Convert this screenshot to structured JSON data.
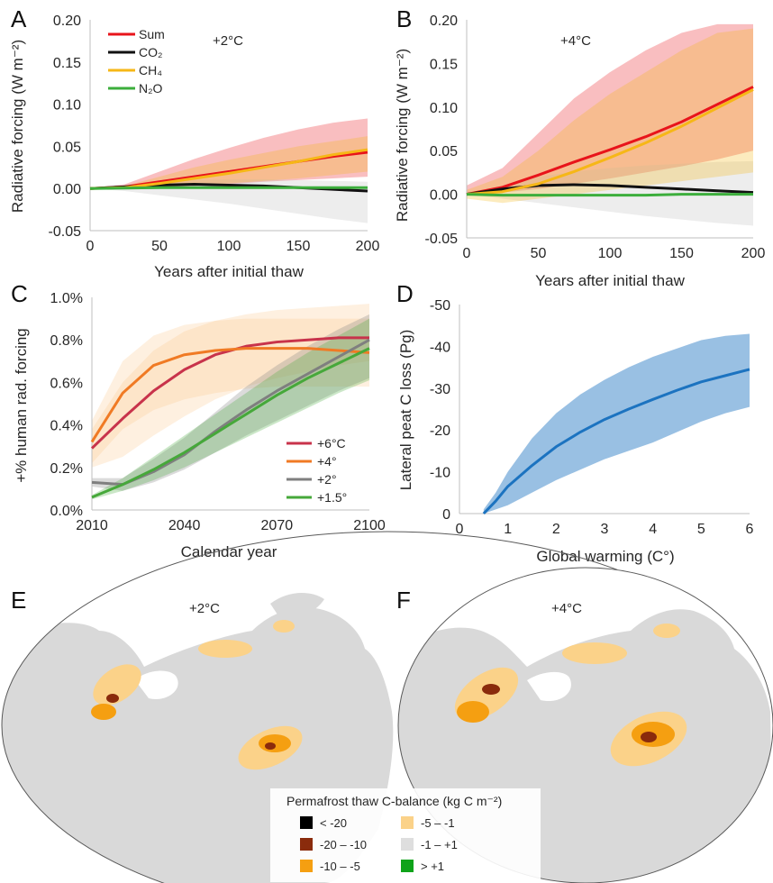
{
  "chart_data": [
    {
      "panel": "A",
      "type": "line",
      "annotation": "+2°C",
      "xlabel": "Years after initial thaw",
      "ylabel": "Radiative forcing (W m⁻²)",
      "xlim": [
        0,
        200
      ],
      "ylim": [
        -0.05,
        0.2
      ],
      "xticks": [
        "0",
        "50",
        "100",
        "150",
        "200"
      ],
      "yticks": [
        "-0.05",
        "0.00",
        "0.05",
        "0.10",
        "0.15",
        "0.20"
      ],
      "legend_position": "top-left",
      "x": [
        0,
        25,
        50,
        75,
        100,
        125,
        150,
        175,
        200
      ],
      "series": [
        {
          "name": "Sum",
          "color": "#e8141b",
          "values": [
            0,
            0.002,
            0.008,
            0.014,
            0.02,
            0.026,
            0.032,
            0.038,
            0.043
          ],
          "band_lo": [
            0,
            0,
            0.001,
            0.003,
            0.005,
            0.008,
            0.01,
            0.012,
            0.014
          ],
          "band_hi": [
            0,
            0.005,
            0.02,
            0.035,
            0.048,
            0.06,
            0.07,
            0.078,
            0.083
          ]
        },
        {
          "name": "CO₂",
          "color": "#111111",
          "values": [
            0,
            0.002,
            0.004,
            0.005,
            0.004,
            0.003,
            0.001,
            -0.001,
            -0.003
          ],
          "band_lo": [
            0,
            -0.003,
            -0.008,
            -0.013,
            -0.018,
            -0.024,
            -0.03,
            -0.036,
            -0.041
          ],
          "band_hi": [
            0,
            0.004,
            0.008,
            0.01,
            0.011,
            0.011,
            0.01,
            0.009,
            0.008
          ]
        },
        {
          "name": "CH₄",
          "color": "#f6b717",
          "values": [
            0,
            0.001,
            0.006,
            0.012,
            0.018,
            0.025,
            0.032,
            0.04,
            0.046
          ],
          "band_lo": [
            0,
            0,
            0.002,
            0.004,
            0.006,
            0.009,
            0.012,
            0.016,
            0.02
          ],
          "band_hi": [
            0,
            0.003,
            0.014,
            0.025,
            0.034,
            0.042,
            0.05,
            0.056,
            0.062
          ]
        },
        {
          "name": "N₂O",
          "color": "#3cae3c",
          "values": [
            0,
            0.0005,
            0.001,
            0.001,
            0.001,
            0.001,
            0.001,
            0.001,
            0.001
          ]
        }
      ]
    },
    {
      "panel": "B",
      "type": "line",
      "annotation": "+4°C",
      "xlabel": "Years after initial thaw",
      "ylabel": "Radiative forcing (W m⁻²)",
      "xlim": [
        0,
        200
      ],
      "ylim": [
        -0.05,
        0.2
      ],
      "xticks": [
        "0",
        "50",
        "100",
        "150",
        "200"
      ],
      "yticks": [
        "-0.05",
        "0.00",
        "0.05",
        "0.10",
        "0.15",
        "0.20"
      ],
      "x": [
        0,
        25,
        50,
        75,
        100,
        125,
        150,
        175,
        200
      ],
      "series": [
        {
          "name": "Sum",
          "color": "#e8141b",
          "values": [
            0,
            0.008,
            0.022,
            0.037,
            0.051,
            0.066,
            0.083,
            0.103,
            0.123
          ],
          "band_lo": [
            0,
            0.002,
            0.006,
            0.012,
            0.018,
            0.025,
            0.032,
            0.04,
            0.05
          ],
          "band_hi": [
            0.01,
            0.03,
            0.07,
            0.11,
            0.14,
            0.165,
            0.185,
            0.195,
            0.195
          ]
        },
        {
          "name": "CO₂",
          "color": "#111111",
          "values": [
            0,
            0.006,
            0.01,
            0.011,
            0.01,
            0.008,
            0.006,
            0.004,
            0.002
          ],
          "band_lo": [
            0,
            -0.005,
            -0.01,
            -0.015,
            -0.02,
            -0.025,
            -0.029,
            -0.033,
            -0.036
          ],
          "band_hi": [
            0,
            0.01,
            0.02,
            0.026,
            0.03,
            0.033,
            0.035,
            0.037,
            0.038
          ]
        },
        {
          "name": "CH₄",
          "color": "#f6b717",
          "values": [
            0,
            0.003,
            0.012,
            0.026,
            0.042,
            0.059,
            0.078,
            0.099,
            0.12
          ],
          "band_lo": [
            -0.005,
            -0.01,
            -0.005,
            0,
            0.005,
            0.01,
            0.015,
            0.02,
            0.025
          ],
          "band_hi": [
            0.005,
            0.02,
            0.05,
            0.085,
            0.115,
            0.14,
            0.165,
            0.185,
            0.19
          ]
        },
        {
          "name": "N₂O",
          "color": "#3cae3c",
          "values": [
            0,
            -0.001,
            -0.001,
            -0.001,
            -0.001,
            -0.001,
            0,
            0,
            0
          ]
        }
      ]
    },
    {
      "panel": "C",
      "type": "line",
      "xlabel": "Calendar year",
      "ylabel": "+% human rad. forcing",
      "xlim": [
        2010,
        2100
      ],
      "ylim": [
        0,
        1
      ],
      "xticks": [
        "2010",
        "2040",
        "2070",
        "2100"
      ],
      "yticks": [
        "0.0%",
        "0.2%",
        "0.4%",
        "0.6%",
        "0.8%",
        "1.0%"
      ],
      "legend_position": "bottom-right",
      "x": [
        2010,
        2020,
        2030,
        2040,
        2050,
        2060,
        2070,
        2080,
        2090,
        2100
      ],
      "series": [
        {
          "name": "+6°C",
          "color": "#c8334b",
          "values": [
            0.29,
            0.43,
            0.56,
            0.66,
            0.73,
            0.77,
            0.79,
            0.8,
            0.81,
            0.81
          ],
          "band_lo": [
            0.2,
            0.25,
            0.35,
            0.44,
            0.52,
            0.58,
            0.62,
            0.65,
            0.68,
            0.7
          ],
          "band_hi": [
            0.38,
            0.6,
            0.75,
            0.84,
            0.89,
            0.92,
            0.94,
            0.95,
            0.96,
            0.97
          ]
        },
        {
          "name": "+4°",
          "color": "#f07a24",
          "values": [
            0.32,
            0.55,
            0.68,
            0.73,
            0.75,
            0.76,
            0.76,
            0.76,
            0.75,
            0.74
          ],
          "band_lo": [
            0.22,
            0.38,
            0.47,
            0.52,
            0.55,
            0.57,
            0.58,
            0.58,
            0.58,
            0.58
          ],
          "band_hi": [
            0.42,
            0.7,
            0.82,
            0.87,
            0.89,
            0.9,
            0.9,
            0.9,
            0.9,
            0.9
          ]
        },
        {
          "name": "+2°",
          "color": "#7f7f7f",
          "values": [
            0.13,
            0.12,
            0.18,
            0.26,
            0.37,
            0.47,
            0.56,
            0.64,
            0.72,
            0.8
          ],
          "band_lo": [
            0.11,
            0.09,
            0.13,
            0.19,
            0.27,
            0.35,
            0.42,
            0.49,
            0.56,
            0.62
          ],
          "band_hi": [
            0.15,
            0.15,
            0.24,
            0.34,
            0.46,
            0.58,
            0.68,
            0.77,
            0.85,
            0.92
          ]
        },
        {
          "name": "+1.5°",
          "color": "#46a83a",
          "values": [
            0.06,
            0.12,
            0.19,
            0.27,
            0.36,
            0.45,
            0.54,
            0.62,
            0.69,
            0.76
          ],
          "band_lo": [
            0.05,
            0.09,
            0.14,
            0.2,
            0.27,
            0.34,
            0.41,
            0.48,
            0.55,
            0.61
          ],
          "band_hi": [
            0.07,
            0.15,
            0.25,
            0.35,
            0.45,
            0.55,
            0.65,
            0.74,
            0.82,
            0.9
          ]
        }
      ]
    },
    {
      "panel": "D",
      "type": "line",
      "xlabel": "Global warming (C°)",
      "ylabel": "Lateral peat C loss (Pg)",
      "xlim": [
        0,
        6
      ],
      "ylim": [
        0,
        -50
      ],
      "y_inverted": true,
      "xticks": [
        "0",
        "1",
        "2",
        "3",
        "4",
        "5",
        "6"
      ],
      "yticks": [
        "0",
        "-10",
        "-20",
        "-30",
        "-40",
        "-50"
      ],
      "x": [
        0.5,
        0.75,
        1,
        1.5,
        2,
        2.5,
        3,
        3.5,
        4,
        4.5,
        5,
        5.5,
        6
      ],
      "series": [
        {
          "color": "#1c73c0",
          "values": [
            0,
            -3,
            -6.5,
            -11.5,
            -16,
            -19.5,
            -22.5,
            -25,
            -27.3,
            -29.5,
            -31.5,
            -33,
            -34.5
          ],
          "band_lo": [
            0,
            -1,
            -2,
            -5,
            -8,
            -10.5,
            -13,
            -15,
            -17,
            -19.5,
            -22,
            -24,
            -25.5
          ],
          "band_hi": [
            -1,
            -5,
            -10,
            -18,
            -24,
            -28.5,
            -32,
            -35,
            -37.5,
            -39.5,
            -41.5,
            -42.5,
            -43
          ]
        }
      ]
    }
  ],
  "maps": {
    "E": {
      "label": "+2°C"
    },
    "F": {
      "label": "+4°C"
    },
    "legend": {
      "title": "Permafrost thaw C-balance (kg C m⁻²)",
      "entries": [
        {
          "label": "< -20",
          "color": "#000000"
        },
        {
          "label": "-5 – -1",
          "color": "#fbd289"
        },
        {
          "label": "-20 – -10",
          "color": "#8a2b0c"
        },
        {
          "label": "-1 – +1",
          "color": "#dedede"
        },
        {
          "label": "-10 – -5",
          "color": "#f59f11"
        },
        {
          "label": "> +1",
          "color": "#0fa31a"
        }
      ]
    }
  },
  "panel_labels": [
    "A",
    "B",
    "C",
    "D",
    "E",
    "F"
  ]
}
